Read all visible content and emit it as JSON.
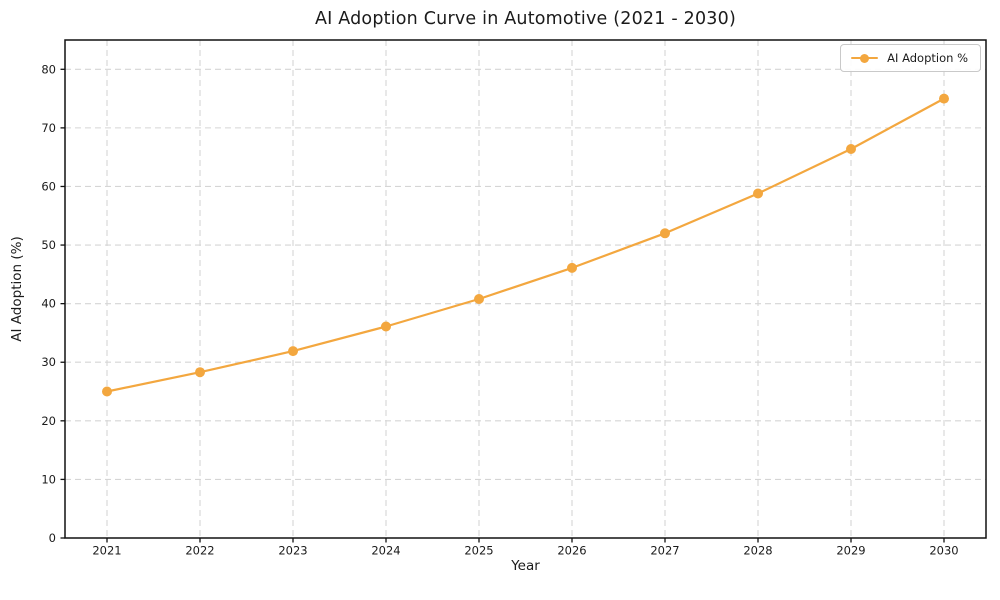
{
  "chart_data": {
    "type": "line",
    "title": "AI Adoption Curve in Automotive (2021 - 2030)",
    "xlabel": "Year",
    "ylabel": "AI Adoption (%)",
    "x": [
      2021,
      2022,
      2023,
      2024,
      2025,
      2026,
      2027,
      2028,
      2029,
      2030
    ],
    "series": [
      {
        "name": "AI Adoption %",
        "values": [
          25.0,
          28.3,
          31.9,
          36.1,
          40.8,
          46.1,
          52.0,
          58.8,
          66.4,
          75.0
        ],
        "color": "#f3a73f",
        "marker": "circle"
      }
    ],
    "ylim": [
      0,
      85
    ],
    "yticks": [
      0,
      10,
      20,
      30,
      40,
      50,
      60,
      70,
      80
    ],
    "grid": true,
    "grid_style": "dashed",
    "legend_position": "upper right"
  },
  "colors": {
    "line": "#f3a73f",
    "axis": "#111111",
    "grid": "#d5d5d5",
    "text": "#1b1b1b",
    "legend_border": "#c9c9c9",
    "background": "#ffffff"
  }
}
